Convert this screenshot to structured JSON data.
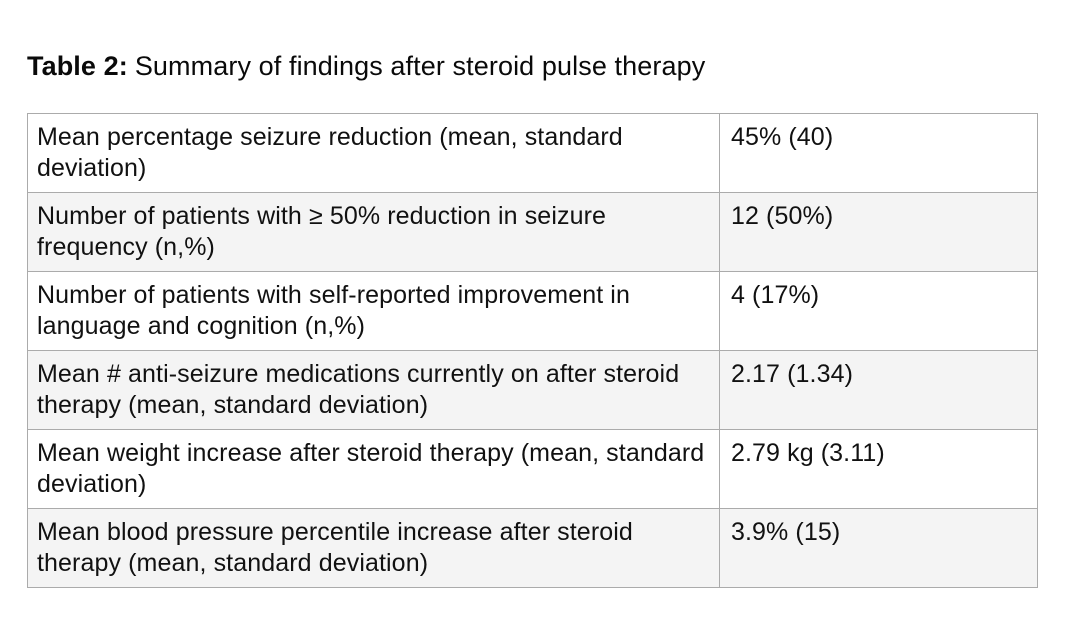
{
  "caption": {
    "prefix": "Table 2:",
    "text": "Summary of findings after steroid pulse therapy"
  },
  "table": {
    "rows": [
      {
        "label": "Mean percentage seizure reduction (mean, standard deviation)",
        "value": "45% (40)"
      },
      {
        "label": "Number of patients with ≥ 50% reduction in seizure frequency (n,%)",
        "value": "12 (50%)"
      },
      {
        "label": "Number of patients with self-reported improvement in language and cognition (n,%)",
        "value": "4 (17%)"
      },
      {
        "label": "Mean # anti-seizure medications currently on after steroid therapy (mean, standard deviation)",
        "value": "2.17 (1.34)"
      },
      {
        "label": "Mean weight increase after steroid therapy (mean, standard deviation)",
        "value": "2.79 kg (3.11)"
      },
      {
        "label": "Mean blood pressure percentile increase after steroid therapy (mean, standard deviation)",
        "value": "3.9% (15)"
      }
    ]
  },
  "colors": {
    "text": "#111111",
    "border": "#ababab",
    "row_alt_background": "#f4f4f4",
    "background": "#ffffff"
  }
}
